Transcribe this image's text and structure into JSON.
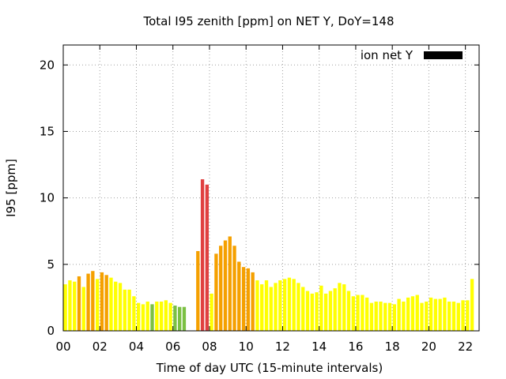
{
  "chart_data": {
    "type": "bar",
    "title": "Total I95 zenith [ppm] on NET Y, DoY=148",
    "xlabel": "Time of day UTC (15-minute intervals)",
    "ylabel": "I95 [ppm]",
    "xlim": [
      0,
      22.75
    ],
    "ylim": [
      0,
      21.5
    ],
    "interval_hours": 0.25,
    "grid": true,
    "x_tick_values": [
      0,
      2,
      4,
      6,
      8,
      10,
      12,
      14,
      16,
      18,
      20,
      22
    ],
    "x_tick_labels": [
      "00",
      "02",
      "04",
      "06",
      "08",
      "10",
      "12",
      "14",
      "16",
      "18",
      "20",
      "22"
    ],
    "y_ticks": [
      0,
      5,
      10,
      15,
      20
    ],
    "legend": {
      "label": "ion net Y",
      "position": "top-right",
      "color": "#000000"
    },
    "colors": {
      "yellow": "#ffff00",
      "orange": "#f5a000",
      "green": "#7bc043",
      "red": "#e04040"
    },
    "series": [
      {
        "values": [
          3.5,
          3.8,
          3.7,
          4.1,
          3.3,
          4.3,
          4.5,
          3.9,
          4.4,
          4.2,
          4.0,
          3.7,
          3.6,
          3.1,
          3.1,
          2.6,
          2.1,
          2.0,
          2.2,
          2.0,
          2.2,
          2.2,
          2.3,
          2.1,
          1.9,
          1.8,
          1.8,
          0,
          0,
          6.0,
          11.4,
          11.0,
          2.8,
          5.8,
          6.4,
          6.8,
          7.1,
          6.4,
          5.2,
          4.8,
          4.7,
          4.4,
          3.8,
          3.5,
          3.8,
          3.3,
          3.6,
          3.8,
          3.9,
          4.0,
          3.9,
          3.6,
          3.3,
          3.0,
          2.8,
          2.9,
          3.4,
          2.8,
          3.0,
          3.2,
          3.6,
          3.5,
          3.0,
          2.6,
          2.7,
          2.7,
          2.5,
          2.1,
          2.2,
          2.2,
          2.1,
          2.1,
          2.0,
          2.4,
          2.2,
          2.5,
          2.6,
          2.7,
          2.1,
          2.2,
          2.5,
          2.4,
          2.4,
          2.5,
          2.2,
          2.2,
          2.1,
          2.3,
          2.3,
          3.9
        ],
        "colors": [
          "yellow",
          "yellow",
          "yellow",
          "orange",
          "yellow",
          "orange",
          "orange",
          "yellow",
          "orange",
          "orange",
          "yellow",
          "yellow",
          "yellow",
          "yellow",
          "yellow",
          "yellow",
          "yellow",
          "yellow",
          "yellow",
          "green",
          "yellow",
          "yellow",
          "yellow",
          "yellow",
          "green",
          "green",
          "green",
          "yellow",
          "yellow",
          "orange",
          "red",
          "red",
          "yellow",
          "orange",
          "orange",
          "orange",
          "orange",
          "orange",
          "orange",
          "orange",
          "orange",
          "orange",
          "yellow",
          "yellow",
          "yellow",
          "yellow",
          "yellow",
          "yellow",
          "yellow",
          "yellow",
          "yellow",
          "yellow",
          "yellow",
          "yellow",
          "yellow",
          "yellow",
          "yellow",
          "yellow",
          "yellow",
          "yellow",
          "yellow",
          "yellow",
          "yellow",
          "yellow",
          "yellow",
          "yellow",
          "yellow",
          "yellow",
          "yellow",
          "yellow",
          "yellow",
          "yellow",
          "yellow",
          "yellow",
          "yellow",
          "yellow",
          "yellow",
          "yellow",
          "yellow",
          "yellow",
          "yellow",
          "yellow",
          "yellow",
          "yellow",
          "yellow",
          "yellow",
          "yellow",
          "yellow",
          "yellow",
          "yellow"
        ]
      }
    ]
  }
}
